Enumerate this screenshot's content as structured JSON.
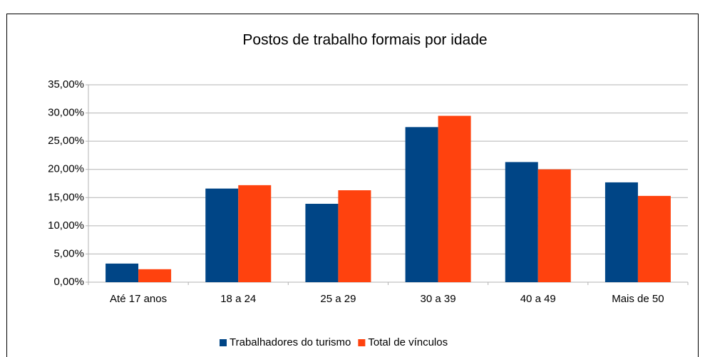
{
  "chart_data": {
    "type": "bar",
    "title": "Postos de trabalho formais por idade",
    "categories": [
      "Até 17 anos",
      "18 a 24",
      "25 a 29",
      "30 a 39",
      "40 a 49",
      "Mais de 50"
    ],
    "series": [
      {
        "name": "Trabalhadores do turismo",
        "color": "#004586",
        "values": [
          3.3,
          16.6,
          13.9,
          27.5,
          21.3,
          17.7
        ]
      },
      {
        "name": "Total de vínculos",
        "color": "#ff420e",
        "values": [
          2.3,
          17.2,
          16.3,
          29.5,
          20.0,
          15.3
        ]
      }
    ],
    "ylim": [
      0,
      35
    ],
    "yticks": [
      {
        "value": 0,
        "label": "0,00%"
      },
      {
        "value": 5,
        "label": "5,00%"
      },
      {
        "value": 10,
        "label": "10,00%"
      },
      {
        "value": 15,
        "label": "15,00%"
      },
      {
        "value": 20,
        "label": "20,00%"
      },
      {
        "value": 25,
        "label": "25,00%"
      },
      {
        "value": 30,
        "label": "30,00%"
      },
      {
        "value": 35,
        "label": "35,00%"
      }
    ],
    "grid": true,
    "legend": "bottom"
  }
}
